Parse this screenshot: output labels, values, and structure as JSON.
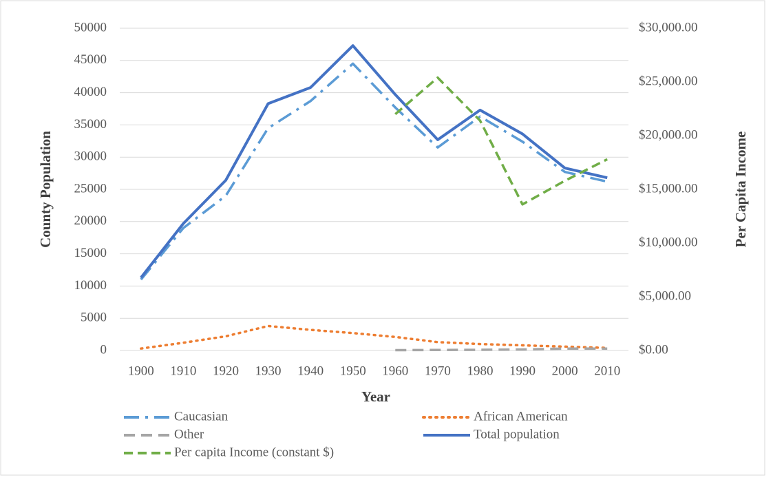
{
  "chart_data": {
    "type": "line",
    "x_label": "Year",
    "y_label": "County Population",
    "y2_label": "Per Capita Income",
    "categories": [
      1900,
      1910,
      1920,
      1930,
      1940,
      1950,
      1960,
      1970,
      1980,
      1990,
      2000,
      2010
    ],
    "ylim": [
      0,
      50000
    ],
    "yticks": [
      0,
      5000,
      10000,
      15000,
      20000,
      25000,
      30000,
      35000,
      40000,
      45000,
      50000
    ],
    "y2lim": [
      0,
      30000
    ],
    "y2ticks": [
      {
        "value": 0,
        "label": "$0.00"
      },
      {
        "value": 5000,
        "label": "$5,000.00"
      },
      {
        "value": 10000,
        "label": "$10,000.00"
      },
      {
        "value": 15000,
        "label": "$15,000.00"
      },
      {
        "value": 20000,
        "label": "$20,000.00"
      },
      {
        "value": 25000,
        "label": "$25,000.00"
      },
      {
        "value": 30000,
        "label": "$30,000.00"
      }
    ],
    "grid": true,
    "legend": "bottom",
    "series": [
      {
        "name": "Caucasian",
        "color": "#5b9bd5",
        "dash": "long-dash-dot",
        "values": [
          11000,
          19000,
          24000,
          34500,
          38700,
          44500,
          37700,
          31500,
          36300,
          32400,
          27700,
          26200
        ]
      },
      {
        "name": "African American",
        "color": "#ed7d31",
        "dash": "dot",
        "values": [
          300,
          1200,
          2200,
          3800,
          3200,
          2700,
          2100,
          1300,
          1000,
          800,
          600,
          400
        ]
      },
      {
        "name": "Other",
        "color": "#a5a5a5",
        "dash": "dash",
        "values": [
          null,
          null,
          null,
          null,
          null,
          null,
          50,
          80,
          100,
          150,
          300,
          300
        ]
      },
      {
        "name": "Total population",
        "color": "#4472c4",
        "dash": "solid",
        "values": [
          11300,
          19700,
          26400,
          38300,
          40800,
          47300,
          39700,
          32700,
          37300,
          33600,
          28300,
          26800
        ]
      },
      {
        "name": "Per capita Income (constant $)",
        "color": "#70ad47",
        "dash": "short-dash",
        "axis": "y2",
        "values": [
          null,
          null,
          null,
          null,
          null,
          null,
          22000,
          25400,
          21400,
          13600,
          15800,
          17800
        ]
      }
    ]
  }
}
